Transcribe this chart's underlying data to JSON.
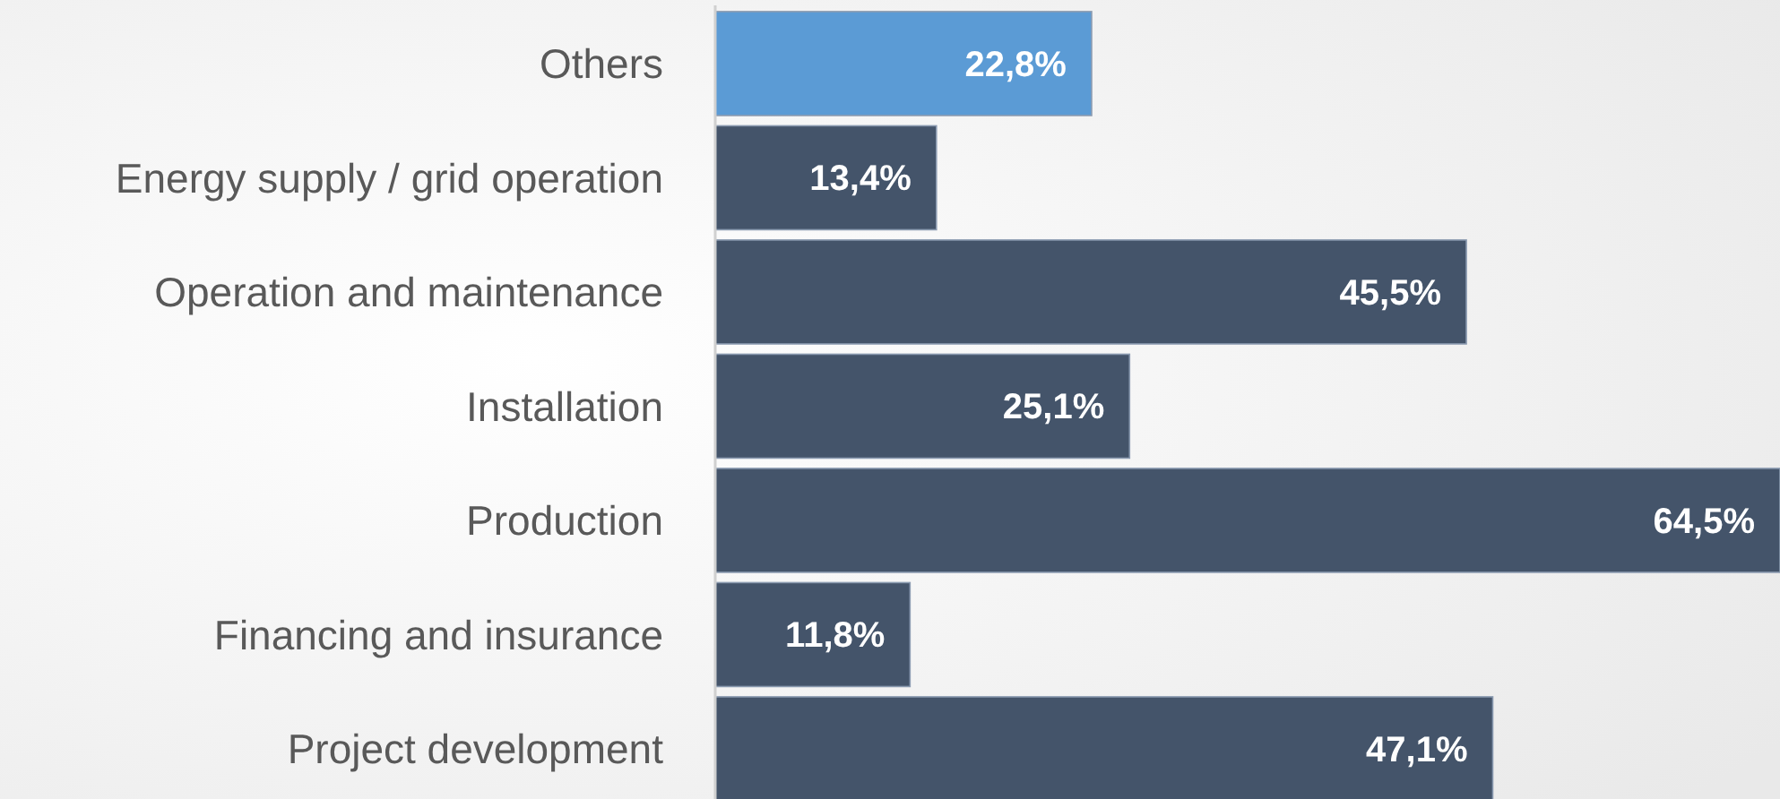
{
  "chart_data": {
    "type": "bar",
    "orientation": "horizontal",
    "categories": [
      "Others",
      "Energy supply / grid operation",
      "Operation and maintenance",
      "Installation",
      "Production",
      "Financing and insurance",
      "Project development"
    ],
    "values": [
      22.8,
      13.4,
      45.5,
      25.1,
      64.5,
      11.8,
      47.1
    ],
    "colors": [
      "#5b9bd5",
      "#44546a",
      "#44546a",
      "#44546a",
      "#44546a",
      "#44546a",
      "#44546a"
    ],
    "value_labels": [
      "22,8%",
      "13,4%",
      "45,5%",
      "25,1%",
      "64,5%",
      "11,8%",
      "47,1%"
    ]
  }
}
